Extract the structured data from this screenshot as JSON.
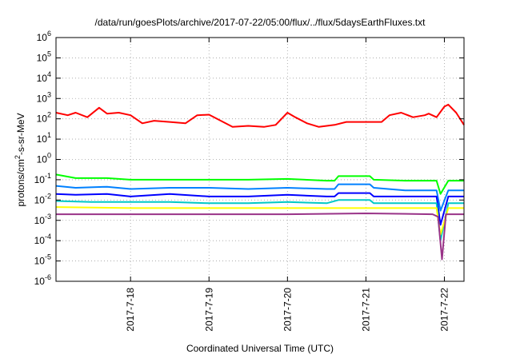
{
  "chart_data": {
    "type": "line",
    "title": "/data/run/goesPlots/archive/2017-07-22/05:00/flux/../flux/5daysEarthFluxes.txt",
    "xlabel": "Coordinated Universal Time (UTC)",
    "ylabel_prefix": "protons/cm",
    "ylabel_sup": "2",
    "ylabel_suffix": "-s-sr-MeV",
    "y_scale": "log",
    "ylim": [
      1e-06,
      1000000.0
    ],
    "xlim": [
      -0.95,
      4.25
    ],
    "x_origin_date": "2017-7-18",
    "grid": true,
    "x_ticks": [
      {
        "value": 0,
        "label": "2017-7-18"
      },
      {
        "value": 1,
        "label": "2017-7-19"
      },
      {
        "value": 2,
        "label": "2017-7-20"
      },
      {
        "value": 3,
        "label": "2017-7-21"
      },
      {
        "value": 4,
        "label": "2017-7-22"
      }
    ],
    "y_ticks": [
      {
        "exp": 6,
        "mant": "10",
        "sup": "6"
      },
      {
        "exp": 5,
        "mant": "10",
        "sup": "5"
      },
      {
        "exp": 4,
        "mant": "10",
        "sup": "4"
      },
      {
        "exp": 3,
        "mant": "10",
        "sup": "3"
      },
      {
        "exp": 2,
        "mant": "10",
        "sup": "2"
      },
      {
        "exp": 1,
        "mant": "10",
        "sup": "1"
      },
      {
        "exp": 0,
        "mant": "10",
        "sup": "0"
      },
      {
        "exp": -1,
        "mant": "10",
        "sup": "-1"
      },
      {
        "exp": -2,
        "mant": "10",
        "sup": "-2"
      },
      {
        "exp": -3,
        "mant": "10",
        "sup": "-3"
      },
      {
        "exp": -4,
        "mant": "10",
        "sup": "-4"
      },
      {
        "exp": -5,
        "mant": "10",
        "sup": "-5"
      },
      {
        "exp": -6,
        "mant": "10",
        "sup": "-6"
      }
    ],
    "series": [
      {
        "color": "#ff0000",
        "points": [
          [
            -0.95,
            200
          ],
          [
            -0.8,
            150
          ],
          [
            -0.7,
            200
          ],
          [
            -0.55,
            120
          ],
          [
            -0.4,
            350
          ],
          [
            -0.3,
            180
          ],
          [
            -0.15,
            200
          ],
          [
            0,
            150
          ],
          [
            0.15,
            60
          ],
          [
            0.3,
            80
          ],
          [
            0.5,
            70
          ],
          [
            0.7,
            60
          ],
          [
            0.85,
            150
          ],
          [
            1,
            160
          ],
          [
            1.15,
            80
          ],
          [
            1.3,
            40
          ],
          [
            1.5,
            45
          ],
          [
            1.7,
            40
          ],
          [
            1.85,
            50
          ],
          [
            2,
            200
          ],
          [
            2.1,
            120
          ],
          [
            2.25,
            60
          ],
          [
            2.4,
            40
          ],
          [
            2.6,
            50
          ],
          [
            2.75,
            70
          ],
          [
            2.8,
            70
          ],
          [
            3.2,
            70
          ],
          [
            3.3,
            150
          ],
          [
            3.45,
            200
          ],
          [
            3.6,
            120
          ],
          [
            3.75,
            150
          ],
          [
            3.8,
            180
          ],
          [
            3.9,
            120
          ],
          [
            4,
            400
          ],
          [
            4.05,
            500
          ],
          [
            4.15,
            200
          ],
          [
            4.25,
            50
          ]
        ]
      },
      {
        "color": "#00ff00",
        "points": [
          [
            -0.95,
            0.18
          ],
          [
            -0.7,
            0.12
          ],
          [
            -0.3,
            0.12
          ],
          [
            0,
            0.1
          ],
          [
            0.5,
            0.1
          ],
          [
            1,
            0.1
          ],
          [
            1.5,
            0.1
          ],
          [
            2,
            0.11
          ],
          [
            2.5,
            0.09
          ],
          [
            2.6,
            0.09
          ],
          [
            2.65,
            0.15
          ],
          [
            3.05,
            0.15
          ],
          [
            3.1,
            0.1
          ],
          [
            3.5,
            0.09
          ],
          [
            3.9,
            0.09
          ],
          [
            3.95,
            0.02
          ],
          [
            4.05,
            0.09
          ],
          [
            4.25,
            0.09
          ]
        ]
      },
      {
        "color": "#0080ff",
        "points": [
          [
            -0.95,
            0.05
          ],
          [
            -0.7,
            0.04
          ],
          [
            -0.3,
            0.045
          ],
          [
            0,
            0.035
          ],
          [
            0.5,
            0.04
          ],
          [
            1,
            0.04
          ],
          [
            1.5,
            0.035
          ],
          [
            2,
            0.04
          ],
          [
            2.5,
            0.035
          ],
          [
            2.6,
            0.035
          ],
          [
            2.65,
            0.06
          ],
          [
            3.05,
            0.06
          ],
          [
            3.1,
            0.04
          ],
          [
            3.5,
            0.03
          ],
          [
            3.9,
            0.03
          ],
          [
            3.95,
            0.003
          ],
          [
            4.05,
            0.03
          ],
          [
            4.25,
            0.03
          ]
        ]
      },
      {
        "color": "#0000ff",
        "points": [
          [
            -0.95,
            0.02
          ],
          [
            -0.7,
            0.018
          ],
          [
            -0.3,
            0.02
          ],
          [
            0,
            0.015
          ],
          [
            0.5,
            0.02
          ],
          [
            1,
            0.015
          ],
          [
            1.5,
            0.015
          ],
          [
            2,
            0.018
          ],
          [
            2.5,
            0.015
          ],
          [
            2.6,
            0.015
          ],
          [
            2.65,
            0.022
          ],
          [
            3.05,
            0.022
          ],
          [
            3.1,
            0.015
          ],
          [
            3.5,
            0.015
          ],
          [
            3.9,
            0.015
          ],
          [
            3.95,
            0.0006
          ],
          [
            4.05,
            0.015
          ],
          [
            4.25,
            0.015
          ]
        ]
      },
      {
        "color": "#00c8c8",
        "points": [
          [
            -0.95,
            0.009
          ],
          [
            -0.5,
            0.008
          ],
          [
            0,
            0.008
          ],
          [
            0.5,
            0.008
          ],
          [
            1,
            0.007
          ],
          [
            1.5,
            0.007
          ],
          [
            2,
            0.008
          ],
          [
            2.5,
            0.007
          ],
          [
            2.65,
            0.01
          ],
          [
            3.05,
            0.01
          ],
          [
            3.1,
            0.007
          ],
          [
            3.5,
            0.007
          ],
          [
            3.9,
            0.007
          ],
          [
            3.95,
            0.0001
          ],
          [
            4.05,
            0.007
          ],
          [
            4.25,
            0.007
          ]
        ]
      },
      {
        "color": "#ffff00",
        "points": [
          [
            -0.95,
            0.0045
          ],
          [
            0,
            0.004
          ],
          [
            1,
            0.004
          ],
          [
            2,
            0.004
          ],
          [
            3,
            0.004
          ],
          [
            3.9,
            0.004
          ],
          [
            3.95,
            0.0002
          ],
          [
            4.05,
            0.004
          ],
          [
            4.25,
            0.004
          ]
        ]
      },
      {
        "color": "#993388",
        "points": [
          [
            -0.95,
            0.002
          ],
          [
            0,
            0.002
          ],
          [
            1,
            0.002
          ],
          [
            2,
            0.002
          ],
          [
            3,
            0.0022
          ],
          [
            3.85,
            0.002
          ],
          [
            3.92,
            0.0015
          ],
          [
            3.97,
            1.2e-05
          ],
          [
            4.02,
            0.002
          ],
          [
            4.25,
            0.002
          ]
        ]
      }
    ]
  }
}
